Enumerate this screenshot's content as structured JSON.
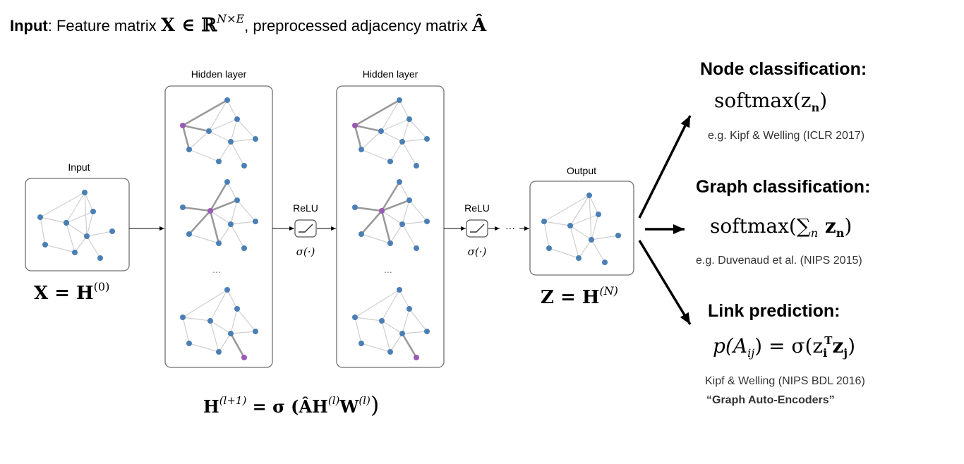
{
  "title": {
    "bold": "Input",
    "text": ": Feature matrix ",
    "math1": "X ∈ ℝ",
    "math1_sup": "N×E",
    "text2": ", preprocessed adjacency matrix ",
    "math2": "Â"
  },
  "stages": {
    "input_label": "Input",
    "hidden1_label": "Hidden layer",
    "hidden2_label": "Hidden layer",
    "output_label": "Output",
    "ellipsis": "...",
    "ellipsis_arrow": "···"
  },
  "activations": {
    "relu_label": "ReLU",
    "sigma_label": "σ(·)"
  },
  "equations": {
    "input_lhs": "X = H",
    "input_sup": "(0)",
    "output_lhs": "Z = H",
    "output_sup": "(N)",
    "update_main": "H",
    "update_sup1": "(l+1)",
    "update_mid": " = σ (ÂH",
    "update_sup2": "(l)",
    "update_w": "W",
    "update_sup3": "(l)",
    "update_end": ")"
  },
  "tasks": {
    "node": {
      "title": "Node classification:",
      "formula": "softmax(z",
      "formula_sub": "n",
      "formula_end": ")",
      "citation": "e.g. Kipf & Welling (ICLR 2017)"
    },
    "graph": {
      "title": "Graph classification:",
      "formula": "softmax(∑",
      "formula_sub": "n",
      "formula_mid": " z",
      "formula_sub2": "n",
      "formula_end": ")",
      "citation": "e.g. Duvenaud et al. (NIPS 2015)"
    },
    "link": {
      "title": "Link prediction:",
      "formula_p": "p(A",
      "formula_p_sub": "ij",
      "formula_mid": ") = σ(z",
      "formula_zi_sub": "i",
      "formula_zi_sup": "T",
      "formula_zj": "z",
      "formula_zj_sub": "j",
      "formula_end": ")",
      "citation": "Kipf & Welling (NIPS BDL 2016)",
      "subtitle": "“Graph Auto-Encoders”"
    }
  },
  "colors": {
    "node_blue": "#4a7fb5",
    "node_purple": "#9b59b6",
    "edge_gray": "#cfcfcf",
    "edge_dark": "#9a9a9a",
    "box_border": "#707070",
    "arrow": "#000000"
  }
}
